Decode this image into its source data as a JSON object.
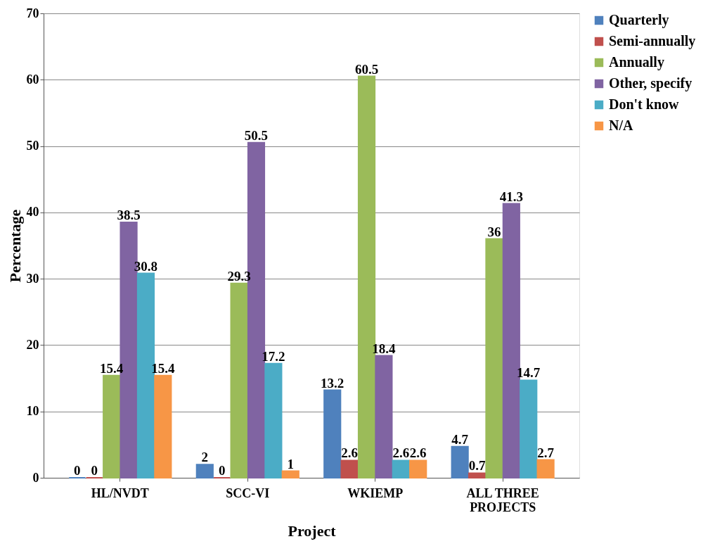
{
  "chart_data": {
    "type": "bar",
    "xlabel": "Project",
    "ylabel": "Percentage",
    "categories": [
      "HL/NVDT",
      "SCC-VI",
      "WKIEMP",
      "ALL THREE PROJECTS"
    ],
    "series": [
      {
        "name": "Quarterly",
        "color": "#4f81bd",
        "values": [
          0,
          2,
          13.2,
          4.7
        ]
      },
      {
        "name": "Semi-annually",
        "color": "#c0504d",
        "values": [
          0,
          0,
          2.6,
          0.7
        ]
      },
      {
        "name": "Annually",
        "color": "#9bbb59",
        "values": [
          15.4,
          29.3,
          60.5,
          36
        ]
      },
      {
        "name": "Other, specify",
        "color": "#8064a2",
        "values": [
          38.5,
          50.5,
          18.4,
          41.3
        ]
      },
      {
        "name": "Don't know",
        "color": "#4bacc6",
        "values": [
          30.8,
          17.2,
          2.6,
          14.7
        ]
      },
      {
        "name": "N/A",
        "color": "#f79646",
        "values": [
          15.4,
          1,
          2.6,
          2.7
        ]
      }
    ],
    "ylim": [
      0,
      70
    ],
    "yticks": [
      0,
      10,
      20,
      30,
      40,
      50,
      60,
      70
    ],
    "grid": "y",
    "legend": "right",
    "data_labels": true
  }
}
